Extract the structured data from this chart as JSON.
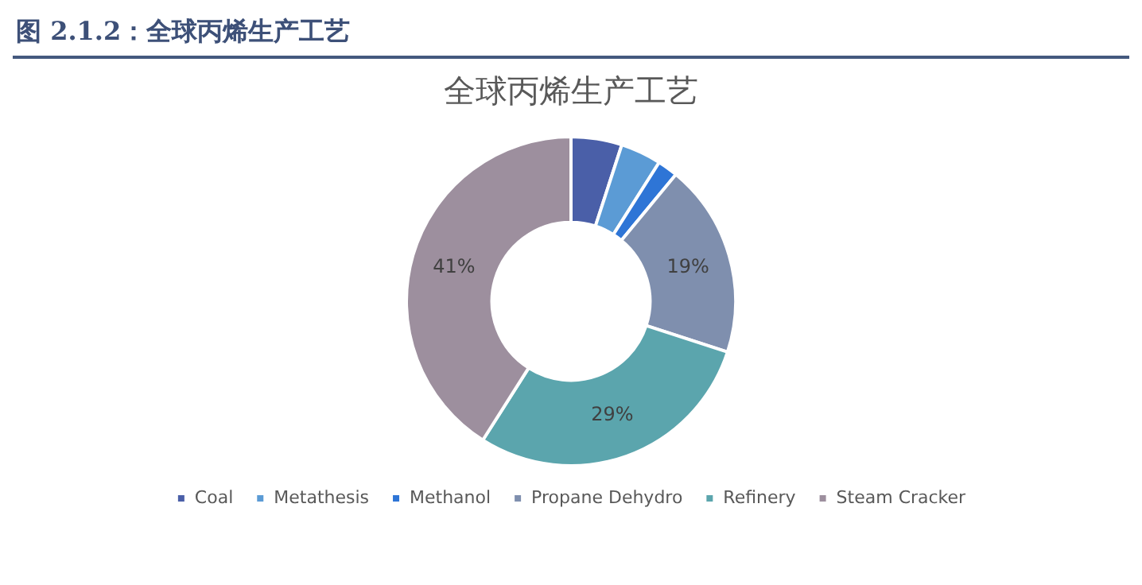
{
  "chart_data": {
    "type": "donut",
    "title": "图 2.1.2：全球丙烯生产工艺",
    "subtitle": "全球丙烯生产工艺",
    "categories": [
      "Coal",
      "Metathesis",
      "Methanol",
      "Propane Dehydro",
      "Refinery",
      "Steam Cracker"
    ],
    "values": [
      5,
      4,
      2,
      19,
      29,
      41
    ],
    "colors": [
      "#4a5fa8",
      "#5b9bd5",
      "#2e75d6",
      "#7f8fae",
      "#5ba5ad",
      "#9d8f9e"
    ],
    "value_labels": [
      null,
      null,
      null,
      "19%",
      "29%",
      "41%"
    ],
    "legend": "bottom"
  }
}
